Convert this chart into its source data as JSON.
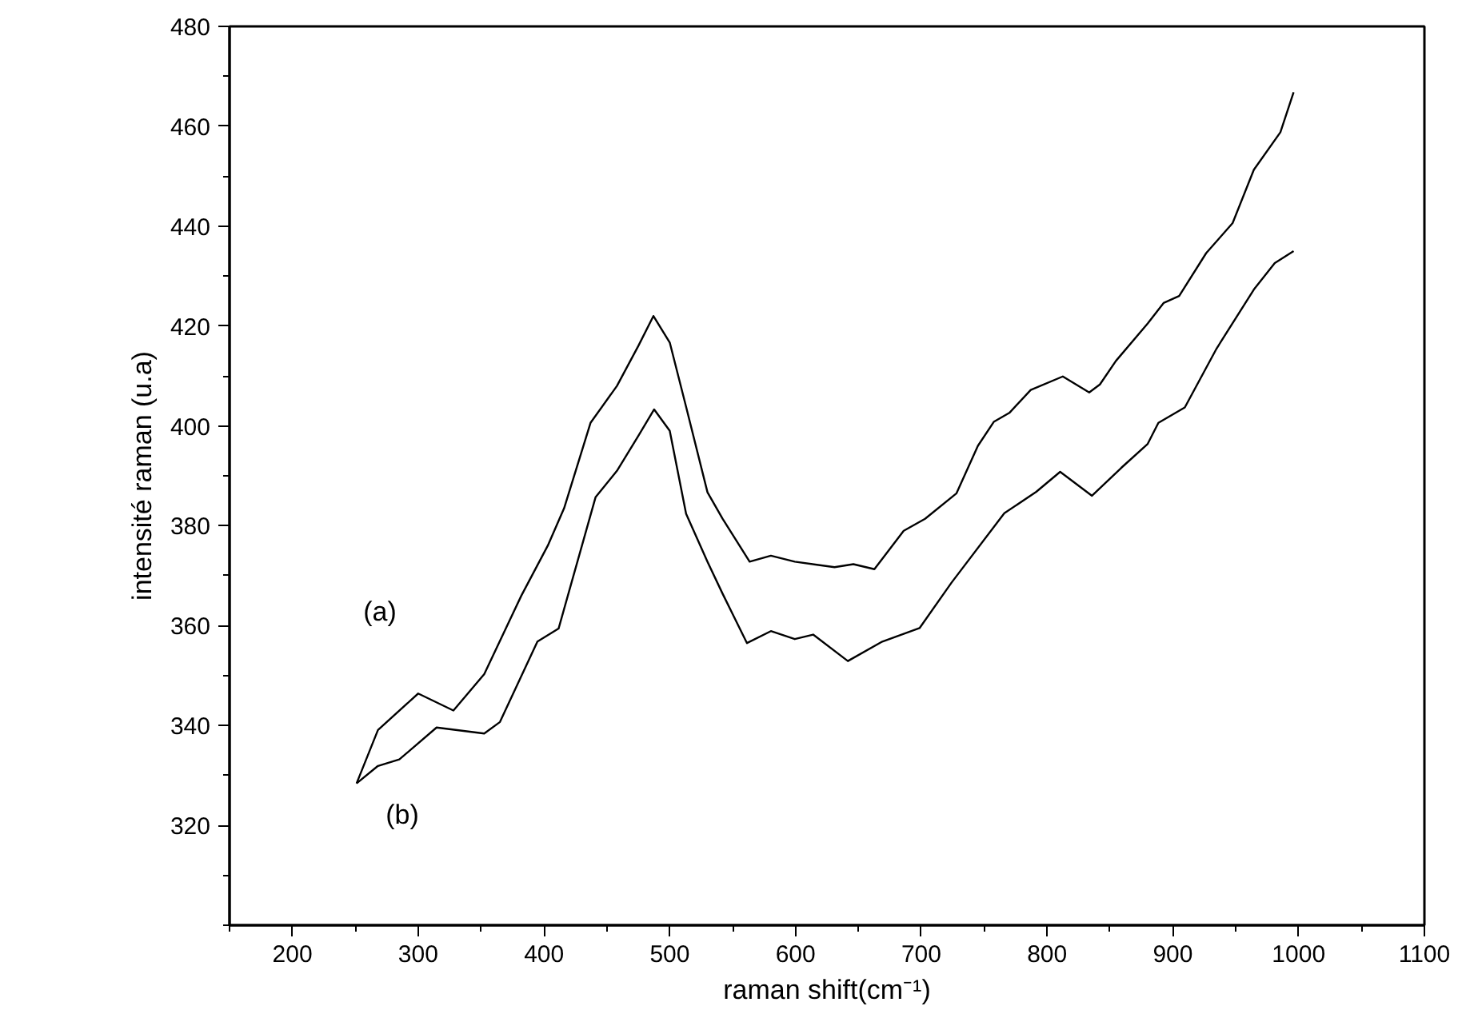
{
  "chart_data": {
    "type": "line",
    "xlabel": "raman shift(cm⁻¹)",
    "ylabel": "intensité raman (u.a)",
    "xlim": [
      150,
      1100
    ],
    "xticks": [
      200,
      300,
      400,
      500,
      600,
      700,
      800,
      900,
      1000,
      1100
    ],
    "ylim": [
      300,
      480
    ],
    "yticks": [
      320,
      340,
      360,
      380,
      400,
      420,
      440,
      460,
      480
    ],
    "grid": false,
    "marker": "none",
    "line_style": "solid",
    "series": [
      {
        "color": "#000000",
        "x": [
          251,
          268,
          300,
          328,
          352.5,
          382,
          403,
          416,
          437,
          458,
          475,
          487,
          500,
          513,
          530,
          542,
          563.5,
          580.4,
          599.4,
          631,
          646,
          662.7,
          686,
          703,
          728,
          745,
          757.6,
          770,
          787,
          812.5,
          833.5,
          842,
          854.7,
          880,
          892.6,
          905,
          926.5,
          947.5,
          964.4,
          985.5,
          996
        ],
        "values": [
          328.4,
          339.1,
          346.4,
          343,
          350.3,
          366,
          376,
          383.5,
          400.6,
          408,
          416,
          422,
          416.7,
          403.8,
          386.7,
          381.4,
          372.8,
          374,
          372.8,
          371.7,
          372.3,
          371.3,
          379,
          381.4,
          386.5,
          396,
          400.8,
          402.6,
          407.2,
          409.9,
          406.7,
          408.3,
          413,
          420.5,
          424.6,
          426,
          434.6,
          440.6,
          451.3,
          458.8,
          466.8
        ]
      },
      {
        "color": "#000000",
        "x": [
          251,
          268,
          285,
          314.6,
          352.5,
          365,
          394.8,
          411.6,
          441,
          458,
          475,
          487.6,
          500,
          513,
          530,
          542,
          561.4,
          580.4,
          599.4,
          614,
          641.6,
          669,
          698.6,
          724,
          766,
          791.4,
          810.4,
          835.7,
          859,
          880,
          888.5,
          909.5,
          934.8,
          964.4,
          981,
          996
        ],
        "values": [
          328.4,
          331.9,
          333.2,
          339.6,
          338.4,
          340.7,
          356.8,
          359.4,
          385.7,
          391,
          398,
          403.3,
          399,
          382.4,
          372.8,
          366.4,
          356.5,
          358.9,
          357.3,
          358.2,
          352.9,
          356.8,
          359.5,
          368.6,
          382.5,
          386.8,
          390.8,
          386,
          391.6,
          396.4,
          400.6,
          403.7,
          415.5,
          427.3,
          432.6,
          435
        ]
      }
    ],
    "annotations": [
      "(a)",
      "(b)"
    ]
  }
}
